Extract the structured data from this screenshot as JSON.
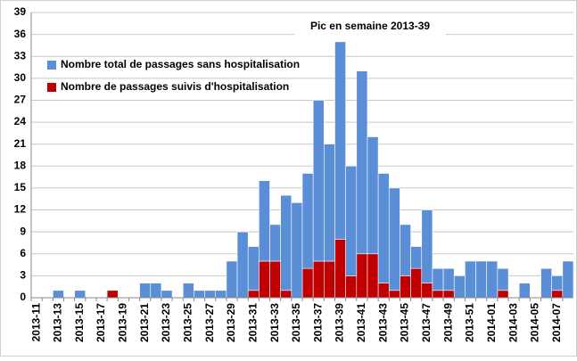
{
  "chart_data": {
    "type": "stacked_bar",
    "annotation": "Pic en semaine 2013-39",
    "categories": [
      "2013-11",
      null,
      "2013-13",
      null,
      "2013-15",
      null,
      "2013-17",
      null,
      "2013-19",
      null,
      "2013-21",
      null,
      "2013-23",
      null,
      "2013-25",
      null,
      "2013-27",
      null,
      "2013-29",
      null,
      "2013-31",
      null,
      "2013-33",
      null,
      "2013-35",
      null,
      "2013-37",
      null,
      "2013-39",
      null,
      "2013-41",
      null,
      "2013-43",
      null,
      "2013-45",
      null,
      "2013-47",
      null,
      "2013-49",
      null,
      "2013-51",
      null,
      "2014-01",
      null,
      "2014-03",
      null,
      "2014-05",
      null,
      "2014-07",
      null
    ],
    "series": [
      {
        "name": "Nombre total de passages sans hospitalisation",
        "color": "#5a8fd8",
        "values": [
          0,
          0,
          1,
          0,
          1,
          0,
          0,
          0,
          0,
          0,
          2,
          2,
          1,
          0,
          2,
          1,
          1,
          1,
          5,
          9,
          6,
          11,
          5,
          13,
          13,
          13,
          22,
          16,
          27,
          15,
          25,
          16,
          15,
          14,
          7,
          3,
          10,
          3,
          3,
          3,
          5,
          5,
          5,
          3,
          0,
          2,
          0,
          4,
          2,
          5
        ]
      },
      {
        "name": "Nombre de passages suivis d'hospitalisation",
        "color": "#c00000",
        "values": [
          0,
          0,
          0,
          0,
          0,
          0,
          0,
          1,
          0,
          0,
          0,
          0,
          0,
          0,
          0,
          0,
          0,
          0,
          0,
          0,
          1,
          5,
          5,
          1,
          0,
          4,
          5,
          5,
          8,
          3,
          6,
          6,
          2,
          1,
          3,
          4,
          2,
          1,
          1,
          0,
          0,
          0,
          0,
          1,
          0,
          0,
          0,
          0,
          1,
          0
        ]
      }
    ],
    "ylim": [
      0,
      39
    ],
    "yticks": [
      0,
      3,
      6,
      9,
      12,
      15,
      18,
      21,
      24,
      27,
      30,
      33,
      36,
      39
    ],
    "grid": true
  }
}
